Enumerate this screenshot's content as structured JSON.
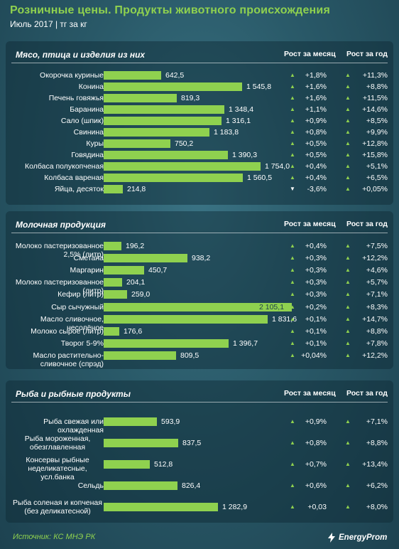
{
  "title": "Розничные  цены. Продукты животного происхождения",
  "subtitle": "Июль 2017 | тг за кг",
  "col_month": "Рост за месяц",
  "col_year": "Рост за год",
  "source": "Источник: КС МНЭ РК",
  "logo": "EnergyProm",
  "colors": {
    "bar": "#8fd14f",
    "accent": "#8fd14f",
    "background": "#2a5a69"
  },
  "chart_data": [
    {
      "type": "bar",
      "title": "Мясо, птица и изделия из них",
      "categories": [
        "Окорочка куриные",
        "Конина",
        "Печень говяжья",
        "Баранина",
        "Сало (шпик)",
        "Свинина",
        "Куры",
        "Говядина",
        "Колбаса полукопченая",
        "Колбаса вареная",
        "Яйца, десяток"
      ],
      "values": [
        642.5,
        1545.8,
        819.3,
        1348.4,
        1316.1,
        1183.8,
        750.2,
        1390.3,
        1754.0,
        1560.5,
        214.8
      ],
      "value_labels": [
        "642,5",
        "1 545,8",
        "819,3",
        "1 348,4",
        "1 316,1",
        "1 183,8",
        "750,2",
        "1 390,3",
        "1 754,0",
        "1 560,5",
        "214,8"
      ],
      "growth_month": [
        "+1,8%",
        "+1,6%",
        "+1,6%",
        "+1,1%",
        "+0,9%",
        "+0,8%",
        "+0,5%",
        "+0,5%",
        "+0,4%",
        "+0,4%",
        "-3,6%"
      ],
      "growth_month_dir": [
        "up",
        "up",
        "up",
        "up",
        "up",
        "up",
        "up",
        "up",
        "up",
        "up",
        "down"
      ],
      "growth_year": [
        "+11,3%",
        "+8,8%",
        "+11,5%",
        "+14,6%",
        "+8,5%",
        "+9,9%",
        "+12,8%",
        "+15,8%",
        "+5,1%",
        "+6,5%",
        "+0,05%"
      ],
      "growth_year_dir": [
        "up",
        "up",
        "up",
        "up",
        "up",
        "up",
        "up",
        "up",
        "up",
        "up",
        "up"
      ]
    },
    {
      "type": "bar",
      "title": "Молочная продукция",
      "categories": [
        "Молоко пастеризованное 2,5% (литр)",
        "Сметана",
        "Маргарин",
        "Молоко пастеризованное (литр)",
        "Кефир (литр)",
        "Сыр сычужный",
        "Масло сливочное, несолёное",
        "Молоко сырое (литр)",
        "Творог 5-9%",
        "Масло растительно-сливочное (спрэд)"
      ],
      "values": [
        196.2,
        938.2,
        450.7,
        204.1,
        259.0,
        2105.1,
        1831.6,
        176.6,
        1396.7,
        809.5
      ],
      "value_labels": [
        "196,2",
        "938,2",
        "450,7",
        "204,1",
        "259,0",
        "2 105,1",
        "1 831,6",
        "176,6",
        "1 396,7",
        "809,5"
      ],
      "growth_month": [
        "+0,4%",
        "+0,3%",
        "+0,3%",
        "+0,3%",
        "+0,3%",
        "+0,2%",
        "+0,1%",
        "+0,1%",
        "+0,1%",
        "+0,04%"
      ],
      "growth_month_dir": [
        "up",
        "up",
        "up",
        "up",
        "up",
        "up",
        "up",
        "up",
        "up",
        "up"
      ],
      "growth_year": [
        "+7,5%",
        "+12,2%",
        "+4,6%",
        "+5,7%",
        "+7,1%",
        "+8,3%",
        "+14,7%",
        "+8,8%",
        "+7,8%",
        "+12,2%"
      ],
      "growth_year_dir": [
        "up",
        "up",
        "up",
        "up",
        "up",
        "up",
        "up",
        "up",
        "up",
        "up"
      ]
    },
    {
      "type": "bar",
      "title": "Рыба и рыбные продукты",
      "categories": [
        "Рыба свежая или охлажденная",
        "Рыба  мороженная, обезглавленная",
        "Консервы рыбные неделикатесные, усл.банка",
        "Сельдь",
        "Рыба  соленая и копченая (без деликатесной)"
      ],
      "values": [
        593.9,
        837.5,
        512.8,
        826.4,
        1282.9
      ],
      "value_labels": [
        "593,9",
        "837,5",
        "512,8",
        "826,4",
        "1 282,9"
      ],
      "growth_month": [
        "+0,9%",
        "+0,8%",
        "+0,7%",
        "+0,6%",
        "+0,03"
      ],
      "growth_month_dir": [
        "up",
        "up",
        "up",
        "up",
        "up"
      ],
      "growth_year": [
        "+7,1%",
        "+8,8%",
        "+13,4%",
        "+6,2%",
        "+8,0%"
      ],
      "growth_year_dir": [
        "up",
        "up",
        "up",
        "up",
        "up"
      ]
    }
  ]
}
